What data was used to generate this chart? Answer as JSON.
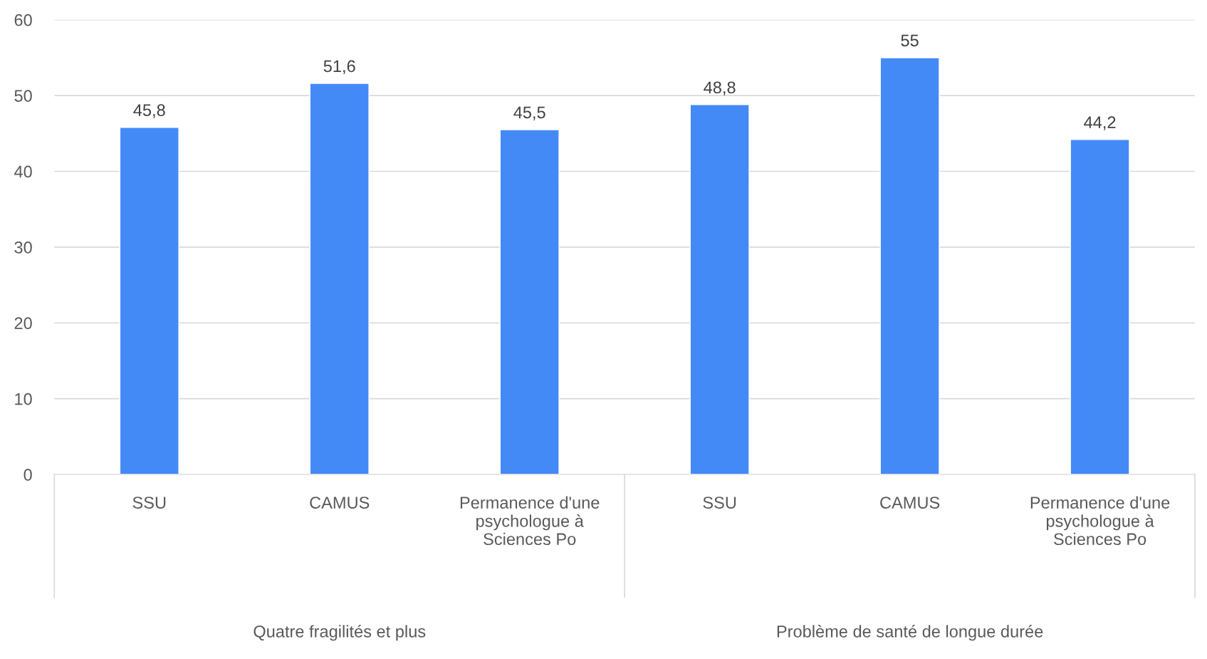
{
  "chart_data": {
    "type": "bar",
    "categories": [
      "SSU",
      "CAMUS",
      "Permanence d'une\npsychologue à\nSciences Po",
      "SSU",
      "CAMUS",
      "Permanence d'une\npsychologue à\nSciences Po"
    ],
    "values": [
      45.8,
      51.6,
      45.5,
      48.8,
      55,
      44.2
    ],
    "color": "#448af7",
    "ylim": [
      0,
      60
    ],
    "yticks": [
      0,
      10,
      20,
      30,
      40,
      50,
      60
    ],
    "grid": "y",
    "value_labels": [
      "45,8",
      "51,6",
      "45,5",
      "48,8",
      "55",
      "44,2"
    ],
    "annotations": [
      "Quatre fragilités et plus",
      "Problème de santé de longue durée"
    ]
  }
}
